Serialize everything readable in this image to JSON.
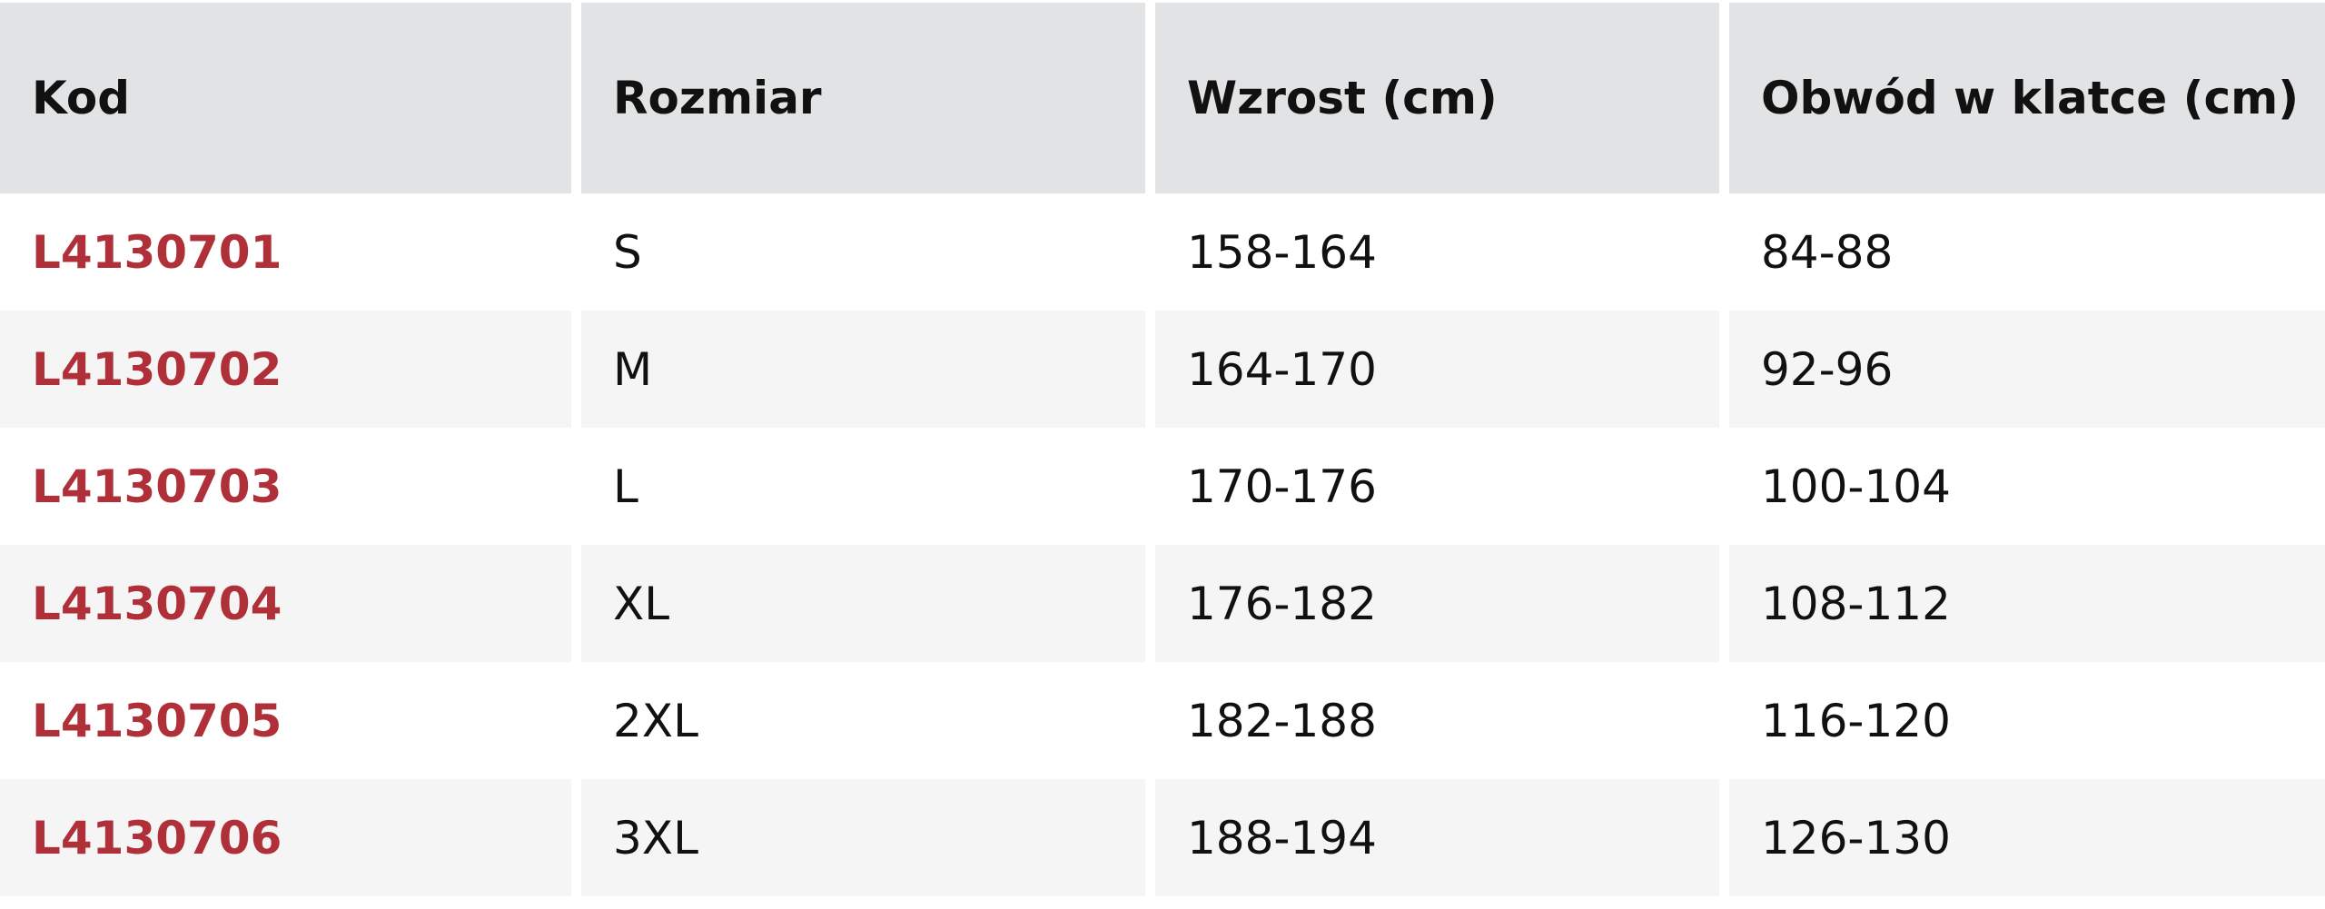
{
  "table": {
    "headers": [
      "Kod",
      "Rozmiar",
      "Wzrost (cm)",
      "Obwód w klatce (cm)"
    ],
    "rows": [
      [
        "L4130701",
        "S",
        "158-164",
        "84-88"
      ],
      [
        "L4130702",
        "M",
        "164-170",
        "92-96"
      ],
      [
        "L4130703",
        "L",
        "170-176",
        "100-104"
      ],
      [
        "L4130704",
        "XL",
        "176-182",
        "108-112"
      ],
      [
        "L4130705",
        "2XL",
        "182-188",
        "116-120"
      ],
      [
        "L4130706",
        "3XL",
        "188-194",
        "126-130"
      ]
    ]
  },
  "colors": {
    "code": "#b0303a",
    "header_bg": "#e2e3e5",
    "alt_row_bg": "#f5f5f5"
  }
}
